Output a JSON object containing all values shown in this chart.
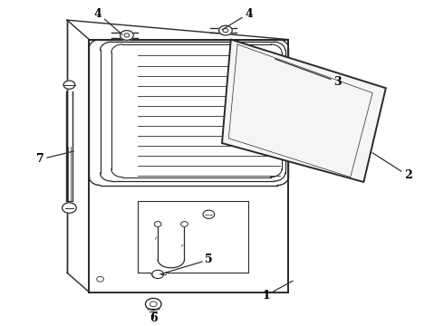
{
  "background_color": "#ffffff",
  "line_color": "#2a2a2a",
  "label_color": "#000000",
  "fig_width": 4.9,
  "fig_height": 3.6,
  "dpi": 100,
  "n_louver_lines": 13,
  "label_fontsize": 9
}
